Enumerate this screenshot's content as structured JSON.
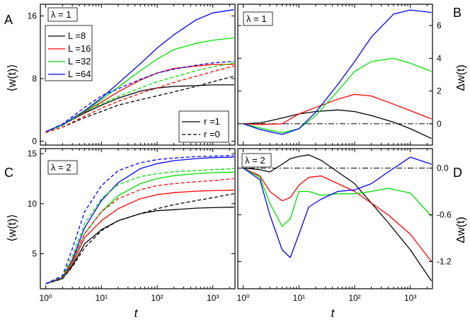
{
  "figure": {
    "panel_letters": [
      "A",
      "B",
      "C",
      "D"
    ],
    "lambda_labels": [
      "λ = 1",
      "λ = 1",
      "λ = 2",
      "λ = 2"
    ],
    "x_label": "t",
    "y_label_left": "⟨w(t)⟩",
    "y_label_right": "Δw(t)"
  },
  "legend": {
    "L_entries": [
      {
        "label": "L =8",
        "color": "#000000"
      },
      {
        "label": "L =16",
        "color": "#ff0000"
      },
      {
        "label": "L =32",
        "color": "#00e000"
      },
      {
        "label": "L =64",
        "color": "#0000ff"
      }
    ],
    "r_entries": [
      {
        "label": "r =1",
        "style": "solid"
      },
      {
        "label": "r =0",
        "style": "dashed"
      }
    ]
  },
  "chart_data": [
    {
      "panel": "A",
      "type": "line",
      "title": "λ = 1",
      "xscale": "log",
      "xlim": [
        0.8,
        2500
      ],
      "ylim": [
        -0.5,
        17.5
      ],
      "xticks": [
        1,
        10,
        100,
        1000
      ],
      "xtick_labels": [
        "10⁰",
        "10¹",
        "10²",
        "10³"
      ],
      "yticks": [
        0,
        8,
        16
      ],
      "ytick_labels": [
        "0",
        "8",
        "16"
      ],
      "xlabel": "",
      "ylabel": "⟨w(t)⟩",
      "x": [
        1,
        2,
        5,
        10,
        20,
        50,
        100,
        200,
        500,
        1000,
        2400
      ],
      "series": [
        {
          "name": "L =8",
          "r": "1",
          "color": "#000000",
          "dash": false,
          "values": [
            1.2,
            2.1,
            3.6,
            4.6,
            5.5,
            6.4,
            6.8,
            7.0,
            7.1,
            7.2,
            7.2
          ]
        },
        {
          "name": "L =16",
          "r": "1",
          "color": "#ff0000",
          "dash": false,
          "values": [
            1.2,
            2.1,
            3.7,
            5.0,
            6.3,
            7.8,
            8.7,
            9.3,
            9.6,
            9.8,
            9.8
          ]
        },
        {
          "name": "L =32",
          "r": "1",
          "color": "#00e000",
          "dash": false,
          "values": [
            1.2,
            2.1,
            3.8,
            5.3,
            6.9,
            9.0,
            10.5,
            11.7,
            12.5,
            12.9,
            13.2
          ]
        },
        {
          "name": "L =64",
          "r": "1",
          "color": "#0000ff",
          "dash": false,
          "values": [
            1.2,
            2.1,
            3.9,
            5.5,
            7.4,
            9.9,
            11.9,
            13.6,
            15.5,
            16.4,
            16.8
          ]
        },
        {
          "name": "L =8",
          "r": "0",
          "color": "#000000",
          "dash": true,
          "values": [
            1.1,
            1.8,
            3.0,
            3.8,
            4.6,
            5.3,
            5.8,
            6.3,
            7.0,
            7.6,
            8.3
          ]
        },
        {
          "name": "L =16",
          "r": "0",
          "color": "#ff0000",
          "dash": true,
          "values": [
            1.1,
            1.8,
            3.2,
            4.2,
            5.1,
            6.1,
            6.8,
            7.5,
            8.3,
            8.9,
            9.6
          ]
        },
        {
          "name": "L =32",
          "r": "0",
          "color": "#00e000",
          "dash": true,
          "values": [
            1.2,
            2.0,
            3.8,
            4.8,
            5.7,
            6.8,
            7.6,
            8.2,
            9.0,
            9.5,
            10.0
          ]
        },
        {
          "name": "L =64",
          "r": "0",
          "color": "#0000ff",
          "dash": true,
          "values": [
            1.2,
            2.2,
            4.3,
            5.8,
            6.7,
            7.9,
            8.7,
            9.2,
            9.7,
            10.0,
            10.2
          ]
        }
      ]
    },
    {
      "panel": "B",
      "type": "line",
      "title": "λ = 1",
      "xscale": "log",
      "xlim": [
        0.8,
        2500
      ],
      "ylim": [
        -1.3,
        7.3
      ],
      "xticks": [
        1,
        10,
        100,
        1000
      ],
      "xtick_labels": [
        "10⁰",
        "10¹",
        "10²",
        "10³"
      ],
      "yticks": [
        0,
        2,
        4,
        6
      ],
      "ytick_labels": [
        "0",
        "2",
        "4",
        "6"
      ],
      "xlabel": "",
      "ylabel": "Δw(t)",
      "reference_line": 0,
      "x": [
        1,
        2,
        5,
        10,
        20,
        50,
        100,
        200,
        500,
        1000,
        2400
      ],
      "series": [
        {
          "name": "L =8",
          "color": "#000000",
          "values": [
            0.0,
            0.05,
            0.35,
            0.6,
            0.75,
            0.85,
            0.75,
            0.5,
            0.1,
            -0.3,
            -0.9
          ]
        },
        {
          "name": "L =16",
          "color": "#ff0000",
          "values": [
            0.0,
            -0.05,
            0.0,
            0.6,
            1.0,
            1.5,
            1.8,
            1.7,
            1.2,
            0.8,
            0.3
          ]
        },
        {
          "name": "L =32",
          "color": "#00e000",
          "values": [
            0.0,
            -0.25,
            -0.55,
            -0.3,
            0.5,
            2.0,
            3.2,
            3.8,
            4.0,
            3.7,
            3.2
          ]
        },
        {
          "name": "L =64",
          "color": "#0000ff",
          "values": [
            0.0,
            -0.35,
            -0.65,
            -0.3,
            0.7,
            2.4,
            3.8,
            5.3,
            6.7,
            6.95,
            6.8
          ]
        }
      ]
    },
    {
      "panel": "C",
      "type": "line",
      "title": "λ = 2",
      "xscale": "log",
      "xlim": [
        0.8,
        2500
      ],
      "ylim": [
        1.5,
        15.5
      ],
      "xticks": [
        1,
        10,
        100,
        1000
      ],
      "xtick_labels": [
        "10⁰",
        "10¹",
        "10²",
        "10³"
      ],
      "yticks": [
        5,
        10,
        15
      ],
      "ytick_labels": [
        "5",
        "10",
        "15"
      ],
      "xlabel": "t",
      "ylabel": "⟨w(t)⟩",
      "x": [
        1,
        2,
        3,
        5,
        10,
        20,
        50,
        100,
        200,
        500,
        1000,
        2400
      ],
      "series": [
        {
          "name": "L =8",
          "r": "1",
          "color": "#000000",
          "dash": false,
          "values": [
            2.0,
            2.5,
            3.8,
            6.0,
            7.4,
            8.3,
            9.0,
            9.3,
            9.4,
            9.55,
            9.6,
            9.65
          ]
        },
        {
          "name": "L =16",
          "r": "1",
          "color": "#ff0000",
          "dash": false,
          "values": [
            2.0,
            2.5,
            4.0,
            6.6,
            8.3,
            9.5,
            10.5,
            10.9,
            11.1,
            11.25,
            11.3,
            11.35
          ]
        },
        {
          "name": "L =32",
          "r": "1",
          "color": "#00e000",
          "dash": false,
          "values": [
            2.0,
            2.5,
            4.2,
            7.0,
            9.2,
            10.8,
            12.0,
            12.5,
            12.8,
            13.0,
            13.1,
            13.15
          ]
        },
        {
          "name": "L =64",
          "r": "1",
          "color": "#0000ff",
          "dash": false,
          "values": [
            2.0,
            2.6,
            4.4,
            7.6,
            10.3,
            12.1,
            13.5,
            14.0,
            14.3,
            14.5,
            14.6,
            14.65
          ]
        },
        {
          "name": "L =8",
          "r": "0",
          "color": "#000000",
          "dash": true,
          "values": [
            2.0,
            2.5,
            3.7,
            5.6,
            7.3,
            8.3,
            9.0,
            9.5,
            9.9,
            10.3,
            10.6,
            11.0
          ]
        },
        {
          "name": "L =16",
          "r": "0",
          "color": "#ff0000",
          "dash": true,
          "values": [
            2.0,
            2.6,
            4.3,
            7.0,
            9.2,
            10.5,
            11.4,
            11.8,
            12.0,
            12.2,
            12.3,
            12.5
          ]
        },
        {
          "name": "L =32",
          "r": "0",
          "color": "#00e000",
          "dash": true,
          "values": [
            2.0,
            2.7,
            4.8,
            8.0,
            10.5,
            11.9,
            12.7,
            13.0,
            13.2,
            13.3,
            13.4,
            13.5
          ]
        },
        {
          "name": "L =64",
          "r": "0",
          "color": "#0000ff",
          "dash": true,
          "values": [
            2.0,
            2.8,
            5.5,
            9.2,
            11.8,
            13.3,
            14.1,
            14.4,
            14.55,
            14.7,
            14.75,
            14.8
          ]
        }
      ]
    },
    {
      "panel": "D",
      "type": "line",
      "title": "λ = 2",
      "xscale": "log",
      "xlim": [
        0.8,
        2500
      ],
      "ylim": [
        -1.55,
        0.25
      ],
      "xticks": [
        1,
        10,
        100,
        1000
      ],
      "xtick_labels": [
        "10⁰",
        "10¹",
        "10²",
        "10³"
      ],
      "yticks": [
        0.0,
        -0.6,
        -1.2
      ],
      "ytick_labels": [
        "0.0",
        "-0.6",
        "-1.2"
      ],
      "xlabel": "t",
      "ylabel": "Δw(t)",
      "reference_line": 0,
      "x": [
        1,
        2,
        3,
        5,
        7,
        10,
        15,
        25,
        50,
        100,
        200,
        400,
        1000,
        2400
      ],
      "series": [
        {
          "name": "L =8",
          "color": "#000000",
          "values": [
            0.0,
            -0.02,
            -0.05,
            0.05,
            0.12,
            0.15,
            0.17,
            0.1,
            -0.05,
            -0.2,
            -0.45,
            -0.7,
            -1.05,
            -1.45
          ]
        },
        {
          "name": "L =16",
          "color": "#ff0000",
          "values": [
            0.0,
            -0.1,
            -0.3,
            -0.42,
            -0.38,
            -0.22,
            -0.12,
            -0.1,
            -0.2,
            -0.3,
            -0.45,
            -0.6,
            -0.85,
            -1.2
          ]
        },
        {
          "name": "L =32",
          "color": "#00e000",
          "values": [
            0.0,
            -0.12,
            -0.45,
            -0.75,
            -0.65,
            -0.3,
            -0.3,
            -0.35,
            -0.33,
            -0.33,
            -0.3,
            -0.26,
            -0.32,
            -0.62
          ]
        },
        {
          "name": "L =64",
          "color": "#0000ff",
          "values": [
            0.0,
            -0.15,
            -0.6,
            -1.05,
            -1.15,
            -0.85,
            -0.5,
            -0.4,
            -0.3,
            -0.28,
            -0.2,
            -0.05,
            0.14,
            0.05
          ]
        }
      ]
    }
  ]
}
